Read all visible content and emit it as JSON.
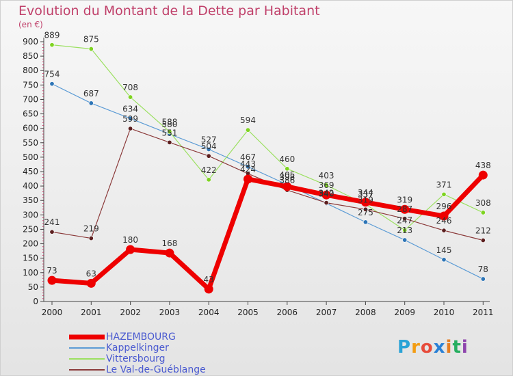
{
  "title": "Evolution du Montant de la Dette par Habitant",
  "unit_label": "(en €)",
  "logo": {
    "text": "Proxiti",
    "letters": [
      "P",
      "r",
      "o",
      "x",
      "i",
      "t",
      "i"
    ],
    "colors": [
      "#2aa3d6",
      "#f39c12",
      "#e74c3c",
      "#2980d6",
      "#e67e22",
      "#27ae60",
      "#8e44ad"
    ]
  },
  "chart_data": {
    "type": "line",
    "title": "Evolution du Montant de la Dette par Habitant",
    "ylabel": "(en €)",
    "xlabel": "",
    "x": [
      2000,
      2001,
      2002,
      2003,
      2004,
      2005,
      2006,
      2007,
      2008,
      2009,
      2010,
      2011
    ],
    "ylim": [
      0,
      900
    ],
    "yticks": [
      0,
      50,
      100,
      150,
      200,
      250,
      300,
      350,
      400,
      450,
      500,
      550,
      600,
      650,
      700,
      750,
      800,
      850,
      900
    ],
    "grid": false,
    "legend": "bottom-left",
    "series": [
      {
        "name": "Kappelkinger",
        "color": "#5b9bd5",
        "marker": "#2e75b6",
        "width": 1.2,
        "values": [
          754,
          687,
          634,
          580,
          527,
          467,
          405,
          340,
          275,
          213,
          145,
          78
        ]
      },
      {
        "name": "Vittersbourg",
        "color": "#9be060",
        "marker": "#7ed321",
        "width": 1.2,
        "values": [
          889,
          875,
          708,
          588,
          422,
          594,
          460,
          403,
          337,
          247,
          371,
          308
        ]
      },
      {
        "name": "Le Val-de-Guéblange",
        "color": "#8b3a3a",
        "marker": "#5c1f1f",
        "width": 1.2,
        "values": [
          241,
          219,
          599,
          551,
          504,
          443,
          386,
          342,
          319,
          287,
          246,
          212
        ]
      },
      {
        "name": "HAZEMBOURG",
        "color": "#ee0000",
        "marker": "#ee0000",
        "width": 7,
        "values": [
          73,
          63,
          180,
          168,
          43,
          424,
          398,
          369,
          344,
          319,
          296,
          438
        ]
      }
    ],
    "legend_order": [
      "HAZEMBOURG",
      "Kappelkinger",
      "Vittersbourg",
      "Le Val-de-Guéblange"
    ]
  }
}
